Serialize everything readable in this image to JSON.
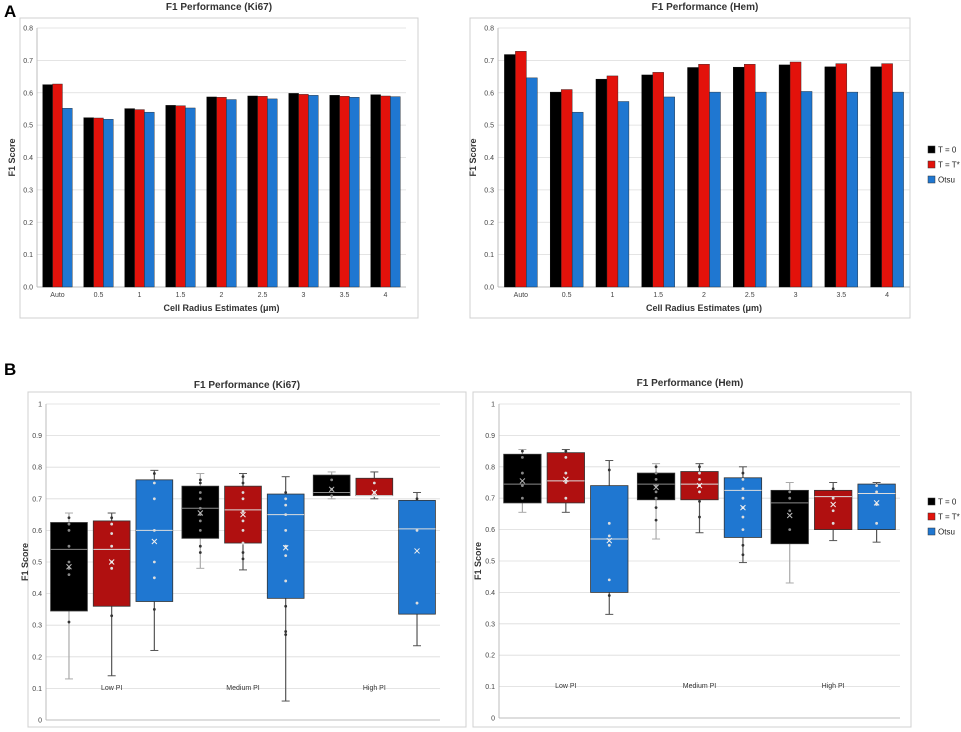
{
  "figure": {
    "panel_a_label": "A",
    "panel_b_label": "B",
    "legend_a": [
      {
        "label": "T = 0",
        "color": "#000000"
      },
      {
        "label": "T = T*",
        "color": "#e3120b"
      },
      {
        "label": "Otsu",
        "color": "#1f77d1"
      }
    ],
    "legend_b": [
      {
        "label": "T = 0",
        "color": "#000000"
      },
      {
        "label": "T = T*",
        "color": "#e3120b"
      },
      {
        "label": "Otsu",
        "color": "#1f77d1"
      }
    ]
  },
  "chart_data": [
    {
      "type": "bar",
      "title": "F1 Performance (Ki67)",
      "xlabel": "Cell Radius Estimates (μm)",
      "ylabel": "F1 Score",
      "ylim": [
        0,
        0.8
      ],
      "yticks": [
        "0.0",
        "0.1",
        "0.2",
        "0.3",
        "0.4",
        "0.5",
        "0.6",
        "0.7",
        "0.8"
      ],
      "categories": [
        "Auto",
        "0.5",
        "1",
        "1.5",
        "2",
        "2.5",
        "3",
        "3.5",
        "4"
      ],
      "series": [
        {
          "name": "T = 0",
          "color": "#000000",
          "values": [
            0.625,
            0.523,
            0.551,
            0.561,
            0.587,
            0.59,
            0.598,
            0.592,
            0.594
          ]
        },
        {
          "name": "T = T*",
          "color": "#e3120b",
          "values": [
            0.627,
            0.522,
            0.548,
            0.56,
            0.586,
            0.589,
            0.595,
            0.589,
            0.59
          ]
        },
        {
          "name": "Otsu",
          "color": "#1f77d1",
          "values": [
            0.552,
            0.518,
            0.54,
            0.553,
            0.579,
            0.581,
            0.592,
            0.586,
            0.588
          ]
        }
      ]
    },
    {
      "type": "bar",
      "title": "F1 Performance (Hem)",
      "xlabel": "Cell Radius Estimates (μm)",
      "ylabel": "F1 Score",
      "ylim": [
        0,
        0.8
      ],
      "yticks": [
        "0.0",
        "0.1",
        "0.2",
        "0.3",
        "0.4",
        "0.5",
        "0.6",
        "0.7",
        "0.8"
      ],
      "categories": [
        "Auto",
        "0.5",
        "1",
        "1.5",
        "2",
        "2.5",
        "3",
        "3.5",
        "4"
      ],
      "series": [
        {
          "name": "T = 0",
          "color": "#000000",
          "values": [
            0.718,
            0.602,
            0.642,
            0.655,
            0.678,
            0.679,
            0.686,
            0.68,
            0.68
          ]
        },
        {
          "name": "T = T*",
          "color": "#e3120b",
          "values": [
            0.728,
            0.61,
            0.652,
            0.663,
            0.688,
            0.688,
            0.695,
            0.69,
            0.69
          ]
        },
        {
          "name": "Otsu",
          "color": "#1f77d1",
          "values": [
            0.646,
            0.54,
            0.573,
            0.587,
            0.602,
            0.602,
            0.604,
            0.602,
            0.602
          ]
        }
      ]
    },
    {
      "type": "box",
      "title": "F1 Performance (Ki67)",
      "ylabel": "F1 Score",
      "ylim": [
        0,
        1
      ],
      "yticks": [
        "0",
        "0.1",
        "0.2",
        "0.3",
        "0.4",
        "0.5",
        "0.6",
        "0.7",
        "0.8",
        "0.9",
        "1"
      ],
      "groups": [
        {
          "name": "Low PI",
          "boxes": [
            {
              "series": "T = 0",
              "color": "#000000",
              "min": 0.13,
              "q1": 0.345,
              "median": 0.54,
              "q3": 0.625,
              "max": 0.655,
              "mean": 0.485,
              "points": [
                0.31,
                0.46,
                0.48,
                0.5,
                0.55,
                0.6,
                0.62,
                0.64
              ]
            },
            {
              "series": "T = T*",
              "color": "#b01010",
              "min": 0.14,
              "q1": 0.36,
              "median": 0.54,
              "q3": 0.63,
              "max": 0.655,
              "mean": 0.5,
              "points": [
                0.33,
                0.48,
                0.5,
                0.55,
                0.59,
                0.62,
                0.64
              ]
            },
            {
              "series": "Otsu",
              "color": "#1f77d1",
              "min": 0.22,
              "q1": 0.375,
              "median": 0.6,
              "q3": 0.76,
              "max": 0.79,
              "mean": 0.565,
              "points": [
                0.35,
                0.45,
                0.5,
                0.6,
                0.7,
                0.75,
                0.78
              ]
            }
          ]
        },
        {
          "name": "Medium PI",
          "boxes": [
            {
              "series": "T = 0",
              "color": "#000000",
              "min": 0.48,
              "q1": 0.575,
              "median": 0.67,
              "q3": 0.74,
              "max": 0.78,
              "mean": 0.655,
              "points": [
                0.53,
                0.55,
                0.6,
                0.63,
                0.65,
                0.67,
                0.7,
                0.72,
                0.75,
                0.76
              ]
            },
            {
              "series": "T = T*",
              "color": "#b01010",
              "min": 0.475,
              "q1": 0.56,
              "median": 0.665,
              "q3": 0.74,
              "max": 0.78,
              "mean": 0.65,
              "points": [
                0.51,
                0.53,
                0.56,
                0.6,
                0.63,
                0.66,
                0.7,
                0.72,
                0.75,
                0.77
              ]
            },
            {
              "series": "Otsu",
              "color": "#1f77d1",
              "min": 0.06,
              "q1": 0.385,
              "median": 0.65,
              "q3": 0.715,
              "max": 0.77,
              "mean": 0.545,
              "points": [
                0.27,
                0.28,
                0.36,
                0.44,
                0.52,
                0.55,
                0.6,
                0.65,
                0.68,
                0.7,
                0.72
              ]
            }
          ]
        },
        {
          "name": "High PI",
          "boxes": [
            {
              "series": "T = 0",
              "color": "#000000",
              "min": 0.7,
              "q1": 0.71,
              "median": 0.72,
              "q3": 0.775,
              "max": 0.785,
              "mean": 0.73,
              "points": [
                0.71,
                0.73,
                0.76
              ]
            },
            {
              "series": "T = T*",
              "color": "#b01010",
              "min": 0.7,
              "q1": 0.71,
              "median": 0.71,
              "q3": 0.765,
              "max": 0.785,
              "mean": 0.72,
              "points": [
                0.71,
                0.72,
                0.75
              ]
            },
            {
              "series": "Otsu",
              "color": "#1f77d1",
              "min": 0.235,
              "q1": 0.335,
              "median": 0.605,
              "q3": 0.695,
              "max": 0.72,
              "mean": 0.535,
              "points": [
                0.37,
                0.6,
                0.7
              ]
            }
          ]
        }
      ]
    },
    {
      "type": "box",
      "title": "F1 Performance (Hem)",
      "ylabel": "F1 Score",
      "ylim": [
        0,
        1
      ],
      "yticks": [
        "0",
        "0.1",
        "0.2",
        "0.3",
        "0.4",
        "0.5",
        "0.6",
        "0.7",
        "0.8",
        "0.9",
        "1"
      ],
      "groups": [
        {
          "name": "Low PI",
          "boxes": [
            {
              "series": "T = 0",
              "color": "#000000",
              "min": 0.655,
              "q1": 0.685,
              "median": 0.745,
              "q3": 0.84,
              "max": 0.855,
              "mean": 0.755,
              "points": [
                0.7,
                0.74,
                0.78,
                0.83,
                0.85
              ]
            },
            {
              "series": "T = T*",
              "color": "#b01010",
              "min": 0.655,
              "q1": 0.685,
              "median": 0.755,
              "q3": 0.845,
              "max": 0.855,
              "mean": 0.76,
              "points": [
                0.7,
                0.75,
                0.78,
                0.83,
                0.85
              ]
            },
            {
              "series": "Otsu",
              "color": "#1f77d1",
              "min": 0.33,
              "q1": 0.4,
              "median": 0.57,
              "q3": 0.74,
              "max": 0.82,
              "mean": 0.565,
              "points": [
                0.39,
                0.44,
                0.55,
                0.58,
                0.62,
                0.79
              ]
            }
          ]
        },
        {
          "name": "Medium PI",
          "boxes": [
            {
              "series": "T = 0",
              "color": "#000000",
              "min": 0.57,
              "q1": 0.695,
              "median": 0.745,
              "q3": 0.78,
              "max": 0.81,
              "mean": 0.735,
              "points": [
                0.63,
                0.67,
                0.7,
                0.72,
                0.74,
                0.76,
                0.78,
                0.8
              ]
            },
            {
              "series": "T = T*",
              "color": "#b01010",
              "min": 0.59,
              "q1": 0.695,
              "median": 0.745,
              "q3": 0.785,
              "max": 0.81,
              "mean": 0.74,
              "points": [
                0.64,
                0.69,
                0.72,
                0.74,
                0.76,
                0.78,
                0.8
              ]
            },
            {
              "series": "Otsu",
              "color": "#1f77d1",
              "min": 0.495,
              "q1": 0.575,
              "median": 0.725,
              "q3": 0.765,
              "max": 0.8,
              "mean": 0.67,
              "points": [
                0.52,
                0.55,
                0.6,
                0.64,
                0.67,
                0.7,
                0.73,
                0.76,
                0.78
              ]
            }
          ]
        },
        {
          "name": "High PI",
          "boxes": [
            {
              "series": "T = 0",
              "color": "#000000",
              "min": 0.43,
              "q1": 0.555,
              "median": 0.685,
              "q3": 0.725,
              "max": 0.75,
              "mean": 0.645,
              "points": [
                0.6,
                0.66,
                0.7,
                0.72
              ]
            },
            {
              "series": "T = T*",
              "color": "#b01010",
              "min": 0.565,
              "q1": 0.6,
              "median": 0.705,
              "q3": 0.725,
              "max": 0.75,
              "mean": 0.68,
              "points": [
                0.62,
                0.66,
                0.7,
                0.73
              ]
            },
            {
              "series": "Otsu",
              "color": "#1f77d1",
              "min": 0.56,
              "q1": 0.6,
              "median": 0.715,
              "q3": 0.745,
              "max": 0.75,
              "mean": 0.685,
              "points": [
                0.62,
                0.68,
                0.72,
                0.74
              ]
            }
          ]
        }
      ]
    }
  ]
}
